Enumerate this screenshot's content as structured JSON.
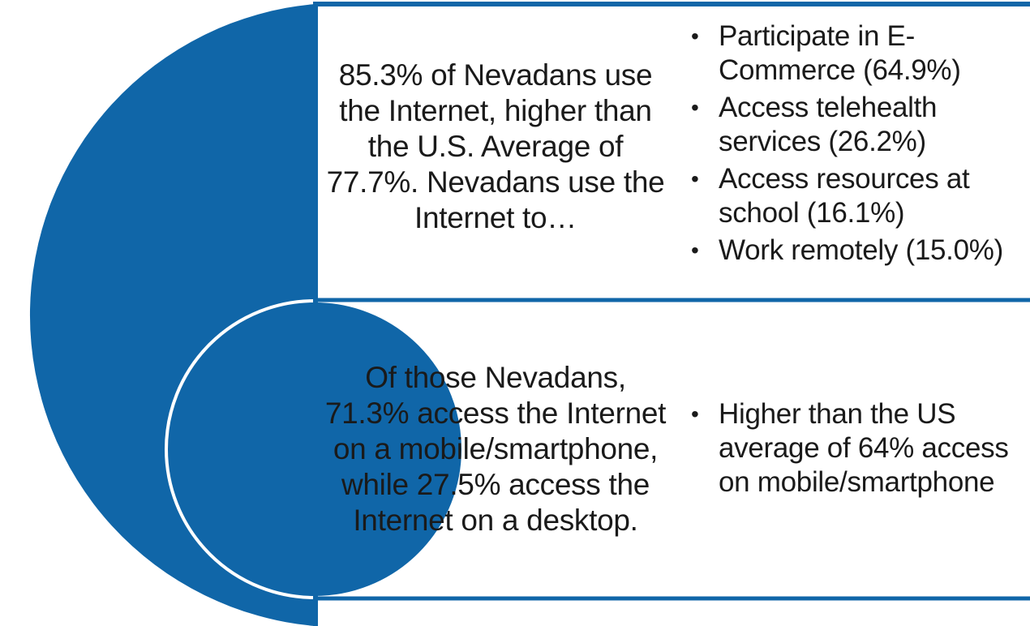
{
  "colors": {
    "accent": "#1066a8",
    "border": "#1066a8",
    "text": "#1a1a1a",
    "background": "#ffffff"
  },
  "rows": [
    {
      "main_text": "85.3% of Nevadans use the Internet, higher than the U.S. Average of 77.7%. Nevadans use the Internet to…",
      "bullets": [
        "Participate in E-Commerce (64.9%)",
        "Access telehealth services (26.2%)",
        "Access resources at school (16.1%)",
        "Work remotely (15.0%)"
      ]
    },
    {
      "main_text": "Of those Nevadans, 71.3% access the Internet on a mobile/smartphone, while 27.5% access the Internet on a desktop.",
      "bullets": [
        "Higher than the US average of 64% access on mobile/smartphone"
      ]
    }
  ]
}
